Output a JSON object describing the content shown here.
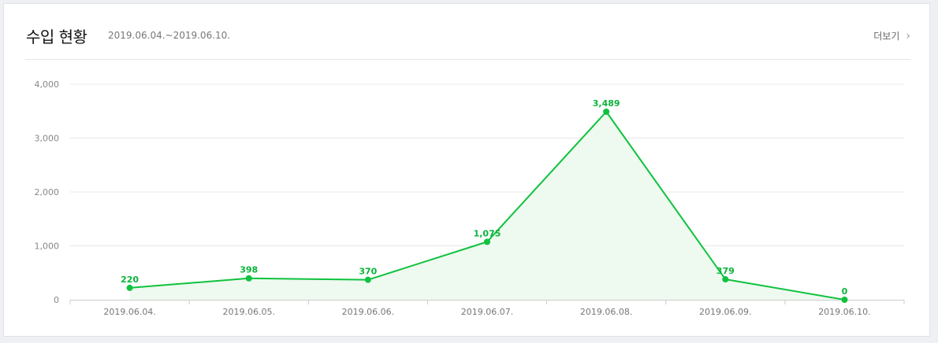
{
  "header": {
    "title": "수입 현황",
    "period": "2019.06.04.~2019.06.10.",
    "more_label": "더보기"
  },
  "colors": {
    "line": "#0fc23f",
    "area": "#eef9ef",
    "grid": "#e8e8e8",
    "label": "#0ab33b"
  },
  "icons": {
    "more": "chevron-right-icon"
  },
  "chart_data": {
    "type": "area",
    "categories": [
      "2019.06.04.",
      "2019.06.05.",
      "2019.06.06.",
      "2019.06.07.",
      "2019.06.08.",
      "2019.06.09.",
      "2019.06.10."
    ],
    "series": [
      {
        "values": [
          220,
          398,
          370,
          1075,
          3489,
          379,
          0
        ]
      }
    ],
    "data_labels": [
      "220",
      "398",
      "370",
      "1,075",
      "3,489",
      "379",
      "0"
    ],
    "y_ticks": [
      "0",
      "1,000",
      "2,000",
      "3,000",
      "4,000"
    ],
    "ylim": [
      0,
      4000
    ],
    "grid": true,
    "legend": false
  }
}
